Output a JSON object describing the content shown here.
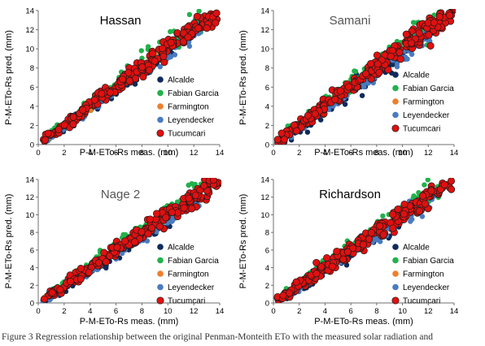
{
  "caption": "Figure 3 Regression relationship between the original Penman-Monteith ETo with the measured solar radiation and",
  "colors": {
    "Alcalde": "#0e2a5a",
    "Fabian Garcia": "#22b14c",
    "Farmington": "#ee7f2d",
    "Leyendecker": "#4a7bc0",
    "Tucumcari": "#e01010",
    "Tucumcari_edge": "#1a1a1a"
  },
  "chart_data": [
    {
      "type": "scatter",
      "title": "Hassan",
      "xlabel": "P-M-ETo-Rs meas. (mm)",
      "ylabel": "P-M-ETo-Rs pred. (mm)",
      "xlim": [
        0,
        14
      ],
      "ylim": [
        0,
        14
      ],
      "xticks": [
        "0",
        "2",
        "4",
        "6",
        "8",
        "10",
        "12",
        "14"
      ],
      "yticks": [
        "0",
        "2",
        "4",
        "6",
        "8",
        "10",
        "12",
        "14"
      ],
      "legend": [
        "Alcalde",
        "Fabian Garcia",
        "Farmington",
        "Leyendecker",
        "Tucumcari"
      ],
      "legend_position": "right",
      "series": [
        {
          "name": "Alcalde",
          "spread": 0.55,
          "bias": -0.25,
          "xmax": 10.5
        },
        {
          "name": "Fabian Garcia",
          "spread": 0.6,
          "bias": 0.45,
          "xmax": 13.0
        },
        {
          "name": "Farmington",
          "spread": 0.35,
          "bias": 0.1,
          "xmax": 10.0
        },
        {
          "name": "Leyendecker",
          "spread": 0.45,
          "bias": -0.35,
          "xmax": 12.5
        },
        {
          "name": "Tucumcari",
          "spread": 0.55,
          "bias": 0.05,
          "xmax": 13.9
        }
      ]
    },
    {
      "type": "scatter",
      "title": "Samani",
      "xlabel": "P-M-ETo-Rs meas. (mm)",
      "ylabel": "P-M-ETo-Rs pred. (mm)",
      "xlim": [
        0,
        14
      ],
      "ylim": [
        0,
        14
      ],
      "xticks": [
        "0",
        "2",
        "4",
        "6",
        "8",
        "10",
        "12",
        "14"
      ],
      "yticks": [
        "0",
        "2",
        "4",
        "6",
        "8",
        "10",
        "12",
        "14"
      ],
      "legend": [
        "Alcalde",
        "Fabian Garcia",
        "Farmington",
        "Leyendecker",
        "Tucumcari"
      ],
      "legend_position": "right",
      "series": [
        {
          "name": "Alcalde",
          "spread": 0.75,
          "bias": -0.35,
          "xmax": 10.5
        },
        {
          "name": "Fabian Garcia",
          "spread": 0.65,
          "bias": 0.4,
          "xmax": 13.0
        },
        {
          "name": "Farmington",
          "spread": 0.4,
          "bias": 0.1,
          "xmax": 10.0
        },
        {
          "name": "Leyendecker",
          "spread": 0.55,
          "bias": -0.4,
          "xmax": 12.5
        },
        {
          "name": "Tucumcari",
          "spread": 0.65,
          "bias": 0.05,
          "xmax": 13.9
        }
      ]
    },
    {
      "type": "scatter",
      "title": "Nage 2",
      "xlabel": "P-M-ETo-Rs meas. (mm)",
      "ylabel": "P-M-ETo-Rs pred. (mm)",
      "xlim": [
        0,
        14
      ],
      "ylim": [
        0,
        14
      ],
      "xticks": [
        "0",
        "2",
        "4",
        "6",
        "8",
        "10",
        "12",
        "14"
      ],
      "yticks": [
        "0",
        "2",
        "4",
        "6",
        "8",
        "10",
        "12",
        "14"
      ],
      "legend": [
        "Alcalde",
        "Fabian Garcia",
        "Farmington",
        "Leyendecker",
        "Tucumcari"
      ],
      "legend_position": "right",
      "series": [
        {
          "name": "Alcalde",
          "spread": 0.6,
          "bias": -0.3,
          "xmax": 10.5
        },
        {
          "name": "Fabian Garcia",
          "spread": 0.6,
          "bias": 0.45,
          "xmax": 13.0
        },
        {
          "name": "Farmington",
          "spread": 0.35,
          "bias": 0.1,
          "xmax": 10.0
        },
        {
          "name": "Leyendecker",
          "spread": 0.5,
          "bias": -0.4,
          "xmax": 12.5
        },
        {
          "name": "Tucumcari",
          "spread": 0.6,
          "bias": 0.05,
          "xmax": 13.9
        }
      ]
    },
    {
      "type": "scatter",
      "title": "Richardson",
      "xlabel": "P-M-ETo-Rs meas. (mm)",
      "ylabel": "P-M-ETo-Rs pred. (mm)",
      "xlim": [
        0,
        14
      ],
      "ylim": [
        0,
        14
      ],
      "xticks": [
        "0",
        "2",
        "4",
        "6",
        "8",
        "10",
        "12",
        "14"
      ],
      "yticks": [
        "0",
        "2",
        "4",
        "6",
        "8",
        "10",
        "12",
        "14"
      ],
      "legend": [
        "Alcalde",
        "Fabian Garcia",
        "Farmington",
        "Leyendecker",
        "Tucumcari"
      ],
      "legend_position": "right",
      "series": [
        {
          "name": "Alcalde",
          "spread": 0.7,
          "bias": -0.3,
          "xmax": 10.5
        },
        {
          "name": "Fabian Garcia",
          "spread": 0.6,
          "bias": 0.4,
          "xmax": 13.0
        },
        {
          "name": "Farmington",
          "spread": 0.35,
          "bias": 0.1,
          "xmax": 10.0
        },
        {
          "name": "Leyendecker",
          "spread": 0.55,
          "bias": -0.4,
          "xmax": 12.5
        },
        {
          "name": "Tucumcari",
          "spread": 0.65,
          "bias": 0.05,
          "xmax": 13.9
        }
      ]
    }
  ]
}
